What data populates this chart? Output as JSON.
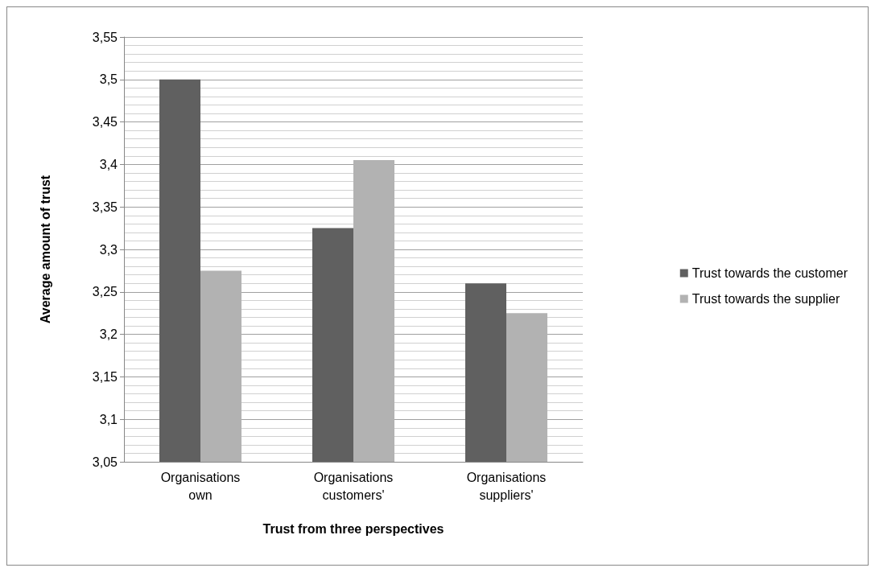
{
  "chart_data": {
    "type": "bar",
    "xlabel": "Trust from three perspectives",
    "ylabel": "Average amount of trust",
    "categories": [
      "Organisations own",
      "Organisations customers'",
      "Organisations suppliers'"
    ],
    "series": [
      {
        "name": "Trust towards the customer",
        "color": "#606060",
        "values": [
          3.5,
          3.325,
          3.26
        ]
      },
      {
        "name": "Trust towards the supplier",
        "color": "#b2b2b2",
        "values": [
          3.275,
          3.405,
          3.225
        ]
      }
    ],
    "ylim": [
      3.05,
      3.55
    ],
    "yticks": [
      {
        "value": 3.05,
        "label": "3,05"
      },
      {
        "value": 3.1,
        "label": "3,1"
      },
      {
        "value": 3.15,
        "label": "3,15"
      },
      {
        "value": 3.2,
        "label": "3,2"
      },
      {
        "value": 3.25,
        "label": "3,25"
      },
      {
        "value": 3.3,
        "label": "3,3"
      },
      {
        "value": 3.35,
        "label": "3,35"
      },
      {
        "value": 3.4,
        "label": "3,4"
      },
      {
        "value": 3.45,
        "label": "3,45"
      },
      {
        "value": 3.5,
        "label": "3,5"
      },
      {
        "value": 3.55,
        "label": "3,55"
      }
    ],
    "grid": true,
    "legend": "right"
  }
}
